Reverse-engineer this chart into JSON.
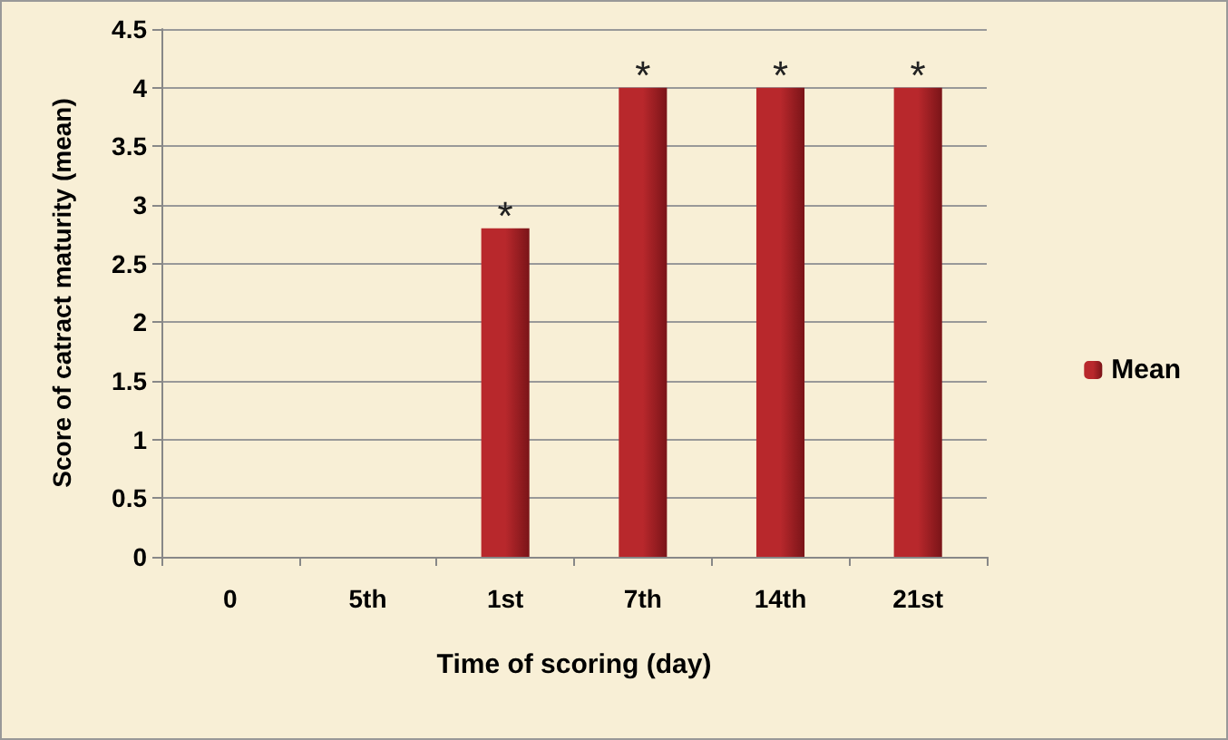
{
  "chart_data": {
    "type": "bar",
    "xlabel": "Time of scoring (day)",
    "ylabel": "Score of catract maturity (mean)",
    "categories": [
      "0",
      "5th",
      "1st",
      "7th",
      "14th",
      "21st"
    ],
    "series": [
      {
        "name": "Mean",
        "color": "#b8282c",
        "values": [
          0,
          0,
          2.8,
          4,
          4,
          4
        ]
      }
    ],
    "ylim": [
      0,
      4.5
    ],
    "yticks": [
      0,
      0.5,
      1,
      1.5,
      2,
      2.5,
      3,
      3.5,
      4,
      4.5
    ],
    "grid": "y",
    "legend": "right",
    "annotations": [
      {
        "text": "*",
        "x": "1st",
        "y": 2.8
      },
      {
        "text": "*",
        "x": "7th",
        "y": 4
      },
      {
        "text": "*",
        "x": "14th",
        "y": 4
      },
      {
        "text": "*",
        "x": "21st",
        "y": 4
      }
    ]
  }
}
